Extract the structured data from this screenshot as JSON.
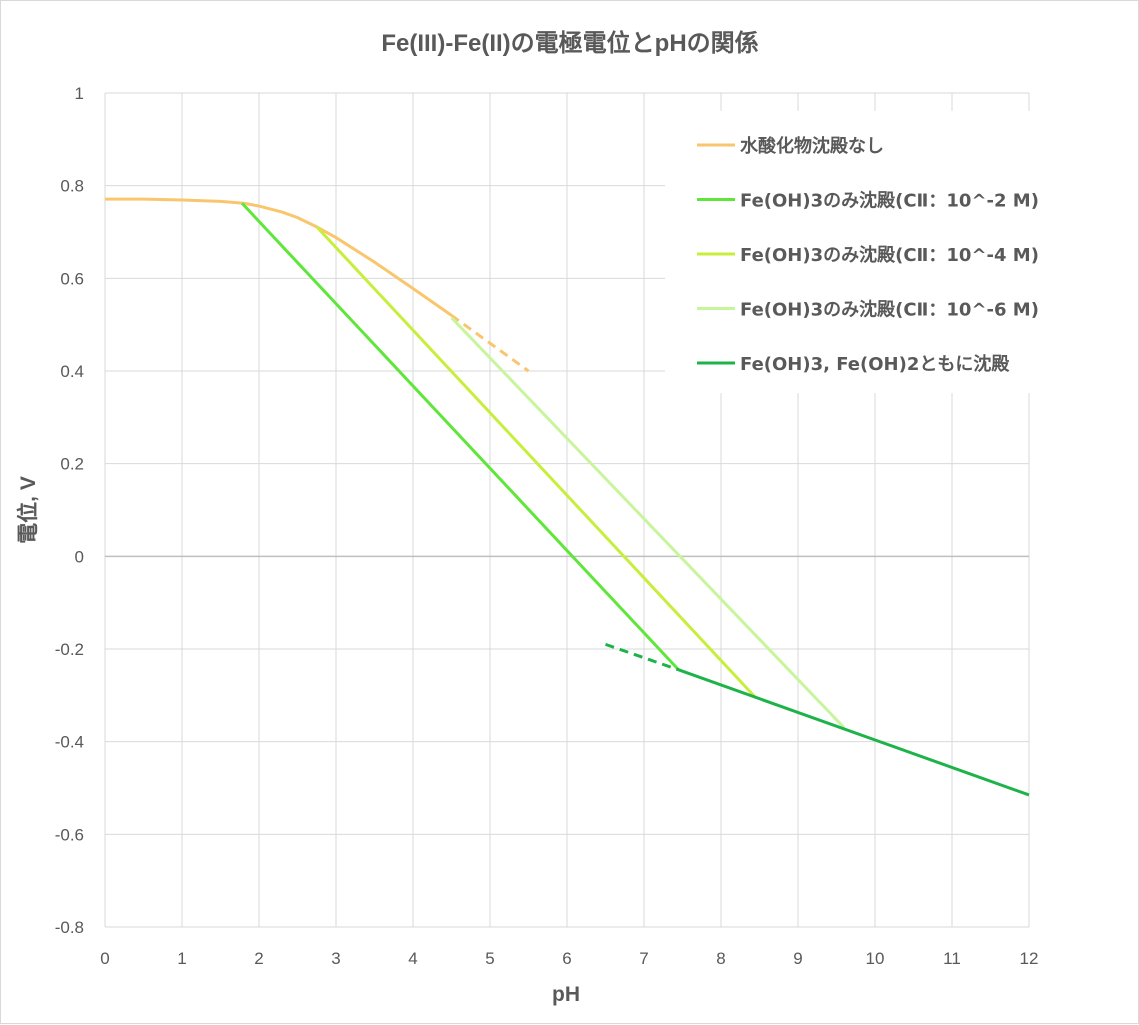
{
  "chart_data": {
    "type": "line",
    "title": "Fe(III)-Fe(II)の電極電位とpHの関係",
    "xlabel": "pH",
    "ylabel": "電位, V",
    "xlim": [
      0,
      12
    ],
    "ylim": [
      -0.8,
      1
    ],
    "xticks": [
      0,
      1,
      2,
      3,
      4,
      5,
      6,
      7,
      8,
      9,
      10,
      11,
      12
    ],
    "yticks": [
      -0.8,
      -0.6,
      -0.4,
      -0.2,
      0,
      0.2,
      0.4,
      0.6,
      0.8,
      1
    ],
    "ytick_labels": [
      "-0.8",
      "-0.6",
      "-0.4",
      "-0.2",
      "0",
      "0.2",
      "0.4",
      "0.6",
      "0.8",
      "1"
    ],
    "grid": true,
    "legend_position": "top-right",
    "series": [
      {
        "name": "水酸化物沈殿なし",
        "color": "#f9c66e",
        "points": [
          [
            0,
            0.771
          ],
          [
            0.5,
            0.771
          ],
          [
            1.0,
            0.769
          ],
          [
            1.5,
            0.766
          ],
          [
            1.8,
            0.762
          ],
          [
            2.0,
            0.756
          ],
          [
            2.3,
            0.743
          ],
          [
            2.5,
            0.731
          ],
          [
            2.75,
            0.711
          ],
          [
            3.0,
            0.688
          ],
          [
            3.5,
            0.635
          ],
          [
            4.0,
            0.578
          ],
          [
            4.5,
            0.52
          ]
        ],
        "dashed_points": [
          [
            4.5,
            0.52
          ],
          [
            5.0,
            0.46
          ],
          [
            5.5,
            0.4
          ]
        ]
      },
      {
        "name": "Fe(OH)3のみ沈殿(CⅡ：10^-2 M)",
        "color": "#5fe63a",
        "points": [
          [
            1.78,
            0.762
          ],
          [
            7.45,
            -0.245
          ]
        ]
      },
      {
        "name": "Fe(OH)3のみ沈殿(CⅡ：10^-4 M)",
        "color": "#c8ee3c",
        "points": [
          [
            2.75,
            0.711
          ],
          [
            8.45,
            -0.305
          ]
        ]
      },
      {
        "name": "Fe(OH)3のみ沈殿(CⅡ：10^-6 M)",
        "color": "#c8f59c",
        "points": [
          [
            4.5,
            0.515
          ],
          [
            9.6,
            -0.37
          ]
        ]
      },
      {
        "name": "Fe(OH)3, Fe(OH)2ともに沈殿",
        "color": "#1db34a",
        "points": [
          [
            7.45,
            -0.245
          ],
          [
            12,
            -0.515
          ]
        ],
        "dashed_points": [
          [
            6.5,
            -0.19
          ],
          [
            7.45,
            -0.245
          ]
        ]
      }
    ]
  }
}
